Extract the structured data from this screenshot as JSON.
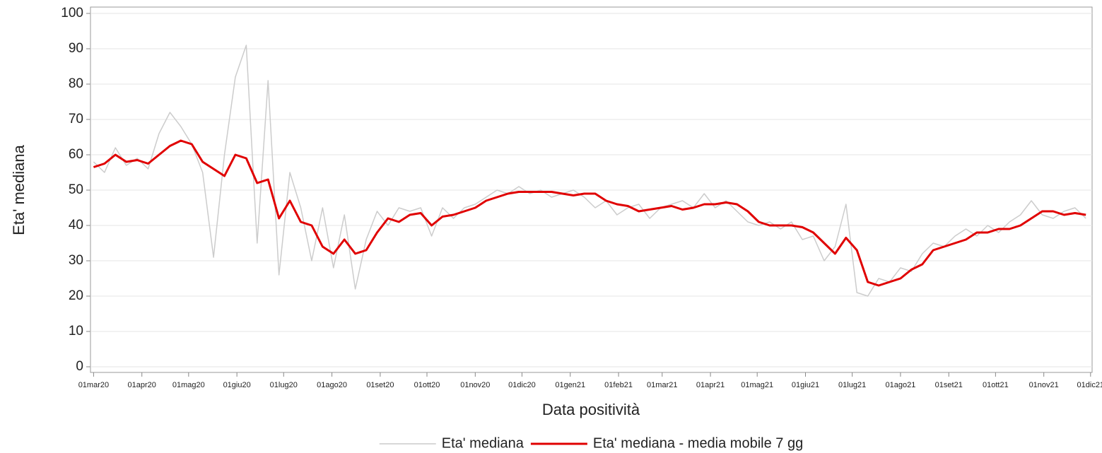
{
  "chart_data": {
    "type": "line",
    "x_label": "Data positività",
    "y_label": "Eta' mediana",
    "x": [
      "2020-03-01",
      "2020-03-08",
      "2020-03-15",
      "2020-03-22",
      "2020-03-29",
      "2020-04-05",
      "2020-04-12",
      "2020-04-19",
      "2020-04-26",
      "2020-05-03",
      "2020-05-10",
      "2020-05-17",
      "2020-05-24",
      "2020-05-31",
      "2020-06-07",
      "2020-06-14",
      "2020-06-21",
      "2020-06-28",
      "2020-07-05",
      "2020-07-12",
      "2020-07-19",
      "2020-07-26",
      "2020-08-02",
      "2020-08-09",
      "2020-08-16",
      "2020-08-23",
      "2020-08-30",
      "2020-09-06",
      "2020-09-13",
      "2020-09-20",
      "2020-09-27",
      "2020-10-04",
      "2020-10-11",
      "2020-10-18",
      "2020-10-25",
      "2020-11-01",
      "2020-11-08",
      "2020-11-15",
      "2020-11-22",
      "2020-11-29",
      "2020-12-06",
      "2020-12-13",
      "2020-12-20",
      "2020-12-27",
      "2021-01-03",
      "2021-01-10",
      "2021-01-17",
      "2021-01-24",
      "2021-01-31",
      "2021-02-07",
      "2021-02-14",
      "2021-02-21",
      "2021-02-28",
      "2021-03-07",
      "2021-03-14",
      "2021-03-21",
      "2021-03-28",
      "2021-04-04",
      "2021-04-11",
      "2021-04-18",
      "2021-04-25",
      "2021-05-02",
      "2021-05-09",
      "2021-05-16",
      "2021-05-23",
      "2021-05-30",
      "2021-06-06",
      "2021-06-13",
      "2021-06-20",
      "2021-06-27",
      "2021-07-04",
      "2021-07-11",
      "2021-07-18",
      "2021-07-25",
      "2021-08-01",
      "2021-08-08",
      "2021-08-15",
      "2021-08-22",
      "2021-08-29",
      "2021-09-05",
      "2021-09-12",
      "2021-09-19",
      "2021-09-26",
      "2021-10-03",
      "2021-10-10",
      "2021-10-17",
      "2021-10-24",
      "2021-10-31",
      "2021-11-07",
      "2021-11-14",
      "2021-11-21",
      "2021-11-28"
    ],
    "series": [
      {
        "name": "Eta' mediana",
        "color": "#cccccc",
        "width": 1.5,
        "values": [
          58,
          55,
          62,
          57,
          59,
          56,
          66,
          72,
          68,
          63,
          55,
          31,
          60,
          82,
          91,
          35,
          81,
          26,
          55,
          45,
          30,
          45,
          28,
          43,
          22,
          36,
          44,
          40,
          45,
          44,
          45,
          37,
          45,
          42,
          45,
          46,
          48,
          50,
          49,
          51,
          49,
          50,
          48,
          49,
          50,
          48,
          45,
          47,
          43,
          45,
          46,
          42,
          45,
          46,
          47,
          45,
          49,
          45,
          47,
          44,
          41,
          40,
          41,
          39,
          41,
          36,
          37,
          30,
          34,
          46,
          21,
          20,
          25,
          24,
          28,
          27,
          32,
          35,
          34,
          37,
          39,
          37,
          40,
          38,
          41,
          43,
          47,
          43,
          42,
          44,
          45,
          42
        ]
      },
      {
        "name": "Eta' mediana - media mobile 7 gg",
        "color": "#e00000",
        "width": 3,
        "values": [
          56.5,
          57.5,
          60,
          58,
          58.5,
          57.5,
          60,
          62.5,
          64,
          63,
          58,
          56,
          54,
          60,
          59,
          52,
          53,
          42,
          47,
          41,
          40,
          34,
          32,
          36,
          32,
          33,
          38,
          42,
          41,
          43,
          43.5,
          40,
          42.5,
          43,
          44,
          45,
          47,
          48,
          49,
          49.5,
          49.5,
          49.5,
          49.5,
          49,
          48.5,
          49,
          49,
          47,
          46,
          45.5,
          44,
          44.5,
          45,
          45.5,
          44.5,
          45,
          46,
          46,
          46.5,
          46,
          44,
          41,
          40,
          40,
          40,
          39.5,
          38,
          35,
          32,
          36.5,
          33,
          24,
          23,
          24,
          25,
          27.5,
          29,
          33,
          34,
          35,
          36,
          38,
          38,
          39,
          39,
          40,
          42,
          44,
          44,
          43,
          43.5,
          43
        ]
      }
    ],
    "xlim": [
      "2020-02-28",
      "2021-12-02"
    ],
    "xticks": [
      {
        "value": "2020-03-01",
        "label": "01mar20"
      },
      {
        "value": "2020-04-01",
        "label": "01apr20"
      },
      {
        "value": "2020-05-01",
        "label": "01mag20"
      },
      {
        "value": "2020-06-01",
        "label": "01giu20"
      },
      {
        "value": "2020-07-01",
        "label": "01lug20"
      },
      {
        "value": "2020-08-01",
        "label": "01ago20"
      },
      {
        "value": "2020-09-01",
        "label": "01set20"
      },
      {
        "value": "2020-10-01",
        "label": "01ott20"
      },
      {
        "value": "2020-11-01",
        "label": "01nov20"
      },
      {
        "value": "2020-12-01",
        "label": "01dic20"
      },
      {
        "value": "2021-01-01",
        "label": "01gen21"
      },
      {
        "value": "2021-02-01",
        "label": "01feb21"
      },
      {
        "value": "2021-03-01",
        "label": "01mar21"
      },
      {
        "value": "2021-04-01",
        "label": "01apr21"
      },
      {
        "value": "2021-05-01",
        "label": "01mag21"
      },
      {
        "value": "2021-06-01",
        "label": "01giu21"
      },
      {
        "value": "2021-07-01",
        "label": "01lug21"
      },
      {
        "value": "2021-08-01",
        "label": "01ago21"
      },
      {
        "value": "2021-09-01",
        "label": "01set21"
      },
      {
        "value": "2021-10-01",
        "label": "01ott21"
      },
      {
        "value": "2021-11-01",
        "label": "01nov21"
      },
      {
        "value": "2021-12-01",
        "label": "01dic21"
      }
    ],
    "ylim": [
      0,
      100
    ],
    "yticks": [
      0,
      10,
      20,
      30,
      40,
      50,
      60,
      70,
      80,
      90,
      100
    ],
    "grid": true,
    "legend": "bottom"
  }
}
